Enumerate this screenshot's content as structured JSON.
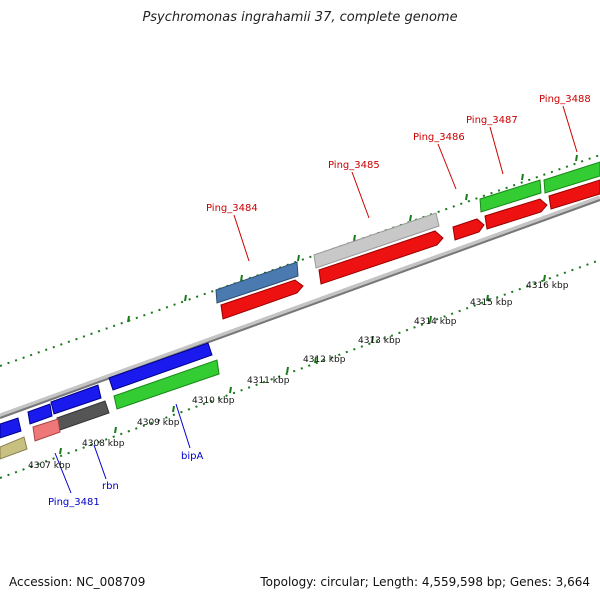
{
  "title": "Psychromonas ingrahamii 37, complete genome",
  "footer": {
    "accession": "Accession: NC_008709",
    "stats": "Topology: circular; Length: 4,559,598 bp; Genes: 3,664"
  },
  "scale_labels": [
    "4307 kbp",
    "4308 kbp",
    "4309 kbp",
    "4310 kbp",
    "4311 kbp",
    "4312 kbp",
    "4313 kbp",
    "4314 kbp",
    "4315 kbp",
    "4316 kbp"
  ],
  "gene_labels_top": [
    "Ping_3484",
    "Ping_3485",
    "Ping_3486",
    "Ping_3487",
    "Ping_3488"
  ],
  "gene_labels_bottom": [
    "Ping_3481",
    "rbn",
    "bipA"
  ],
  "colors": {
    "top_label": "#cc0000",
    "bottom_label": "#0000cc",
    "tick": "#1a7a1a",
    "backbone": "#888888"
  }
}
